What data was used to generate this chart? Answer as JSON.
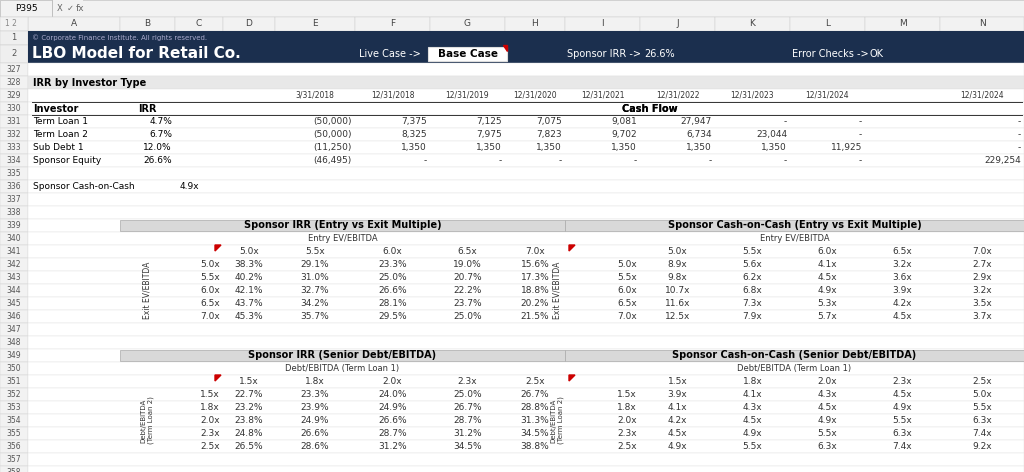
{
  "title_row1": "© Corporate Finance Institute. All rights reserved.",
  "title_row2": "LBO Model for Retail Co.",
  "header_bg": "#1b2f4e",
  "header_text_color": "#ffffff",
  "live_case_text": "Live Case ->",
  "base_case_text": "Base Case",
  "sponsor_irr_label": "Sponsor IRR ->",
  "sponsor_irr_value": "26.6%",
  "error_checks_label": "Error Checks ->",
  "error_checks_value": "OK",
  "irr_section_title": "IRR by Investor Type",
  "investors": [
    {
      "name": "Term Loan 1",
      "irr": "4.7%",
      "cf": [
        "(50,000)",
        "7,375",
        "7,125",
        "7,075",
        "9,081",
        "27,947",
        "-",
        "-",
        "-"
      ]
    },
    {
      "name": "Term Loan 2",
      "irr": "6.7%",
      "cf": [
        "(50,000)",
        "8,325",
        "7,975",
        "7,823",
        "9,702",
        "6,734",
        "23,044",
        "-",
        "-"
      ]
    },
    {
      "name": "Sub Debt 1",
      "irr": "12.0%",
      "cf": [
        "(11,250)",
        "1,350",
        "1,350",
        "1,350",
        "1,350",
        "1,350",
        "1,350",
        "11,925",
        "-"
      ]
    },
    {
      "name": "Sponsor Equity",
      "irr": "26.6%",
      "cf": [
        "(46,495)",
        "-",
        "-",
        "-",
        "-",
        "-",
        "-",
        "-",
        "229,254"
      ]
    }
  ],
  "sponsor_cash_on_cash": "4.9x",
  "irr_entry_exit_title": "Sponsor IRR (Entry vs Exit Multiple)",
  "irr_entry_ebitda_label": "Entry EV/EBITDA",
  "irr_col_headers": [
    "5.0x",
    "5.5x",
    "6.0x",
    "6.5x",
    "7.0x"
  ],
  "irr_row_headers": [
    "5.0x",
    "5.5x",
    "6.0x",
    "6.5x",
    "7.0x"
  ],
  "irr_matrix": [
    [
      "38.3%",
      "29.1%",
      "23.3%",
      "19.0%",
      "15.6%"
    ],
    [
      "40.2%",
      "31.0%",
      "25.0%",
      "20.7%",
      "17.3%"
    ],
    [
      "42.1%",
      "32.7%",
      "26.6%",
      "22.2%",
      "18.8%"
    ],
    [
      "43.7%",
      "34.2%",
      "28.1%",
      "23.7%",
      "20.2%"
    ],
    [
      "45.3%",
      "35.7%",
      "29.5%",
      "25.0%",
      "21.5%"
    ]
  ],
  "irr_exit_label": "Exit EV/EBITDA",
  "cash_entry_exit_title": "Sponsor Cash-on-Cash (Entry vs Exit Multiple)",
  "cash_entry_ebitda_label": "Entry EV/EBITDA",
  "cash_col_headers": [
    "5.0x",
    "5.5x",
    "6.0x",
    "6.5x",
    "7.0x"
  ],
  "cash_row_headers": [
    "5.0x",
    "5.5x",
    "6.0x",
    "6.5x",
    "7.0x"
  ],
  "cash_matrix": [
    [
      "8.9x",
      "5.6x",
      "4.1x",
      "3.2x",
      "2.7x"
    ],
    [
      "9.8x",
      "6.2x",
      "4.5x",
      "3.6x",
      "2.9x"
    ],
    [
      "10.7x",
      "6.8x",
      "4.9x",
      "3.9x",
      "3.2x"
    ],
    [
      "11.6x",
      "7.3x",
      "5.3x",
      "4.2x",
      "3.5x"
    ],
    [
      "12.5x",
      "7.9x",
      "5.7x",
      "4.5x",
      "3.7x"
    ]
  ],
  "cash_exit_label": "Exit EV/EBITDA",
  "irr_debt_title": "Sponsor IRR (Senior Debt/EBITDA)",
  "irr_debt_col_label": "Debt/EBITDA (Term Loan 1)",
  "irr_debt_col_headers": [
    "1.5x",
    "1.8x",
    "2.0x",
    "2.3x",
    "2.5x"
  ],
  "irr_debt_row_headers": [
    "1.5x",
    "1.8x",
    "2.0x",
    "2.3x",
    "2.5x"
  ],
  "irr_debt_matrix": [
    [
      "22.7%",
      "23.3%",
      "24.0%",
      "25.0%",
      "26.7%"
    ],
    [
      "23.2%",
      "23.9%",
      "24.9%",
      "26.7%",
      "28.8%"
    ],
    [
      "23.8%",
      "24.9%",
      "26.6%",
      "28.7%",
      "31.3%"
    ],
    [
      "24.8%",
      "26.6%",
      "28.7%",
      "31.2%",
      "34.5%"
    ],
    [
      "26.5%",
      "28.6%",
      "31.2%",
      "34.5%",
      "38.8%"
    ]
  ],
  "cash_debt_title": "Sponsor Cash-on-Cash (Senior Debt/EBITDA)",
  "cash_debt_col_label": "Debt/EBITDA (Term Loan 1)",
  "cash_debt_col_headers": [
    "1.5x",
    "1.8x",
    "2.0x",
    "2.3x",
    "2.5x"
  ],
  "cash_debt_row_headers": [
    "1.5x",
    "1.8x",
    "2.0x",
    "2.3x",
    "2.5x"
  ],
  "cash_debt_matrix": [
    [
      "3.9x",
      "4.1x",
      "4.3x",
      "4.5x",
      "5.0x"
    ],
    [
      "4.1x",
      "4.3x",
      "4.5x",
      "4.9x",
      "5.5x"
    ],
    [
      "4.2x",
      "4.5x",
      "4.9x",
      "5.5x",
      "6.3x"
    ],
    [
      "4.5x",
      "4.9x",
      "5.5x",
      "6.3x",
      "7.4x"
    ],
    [
      "4.9x",
      "5.5x",
      "6.3x",
      "7.4x",
      "9.2x"
    ]
  ]
}
